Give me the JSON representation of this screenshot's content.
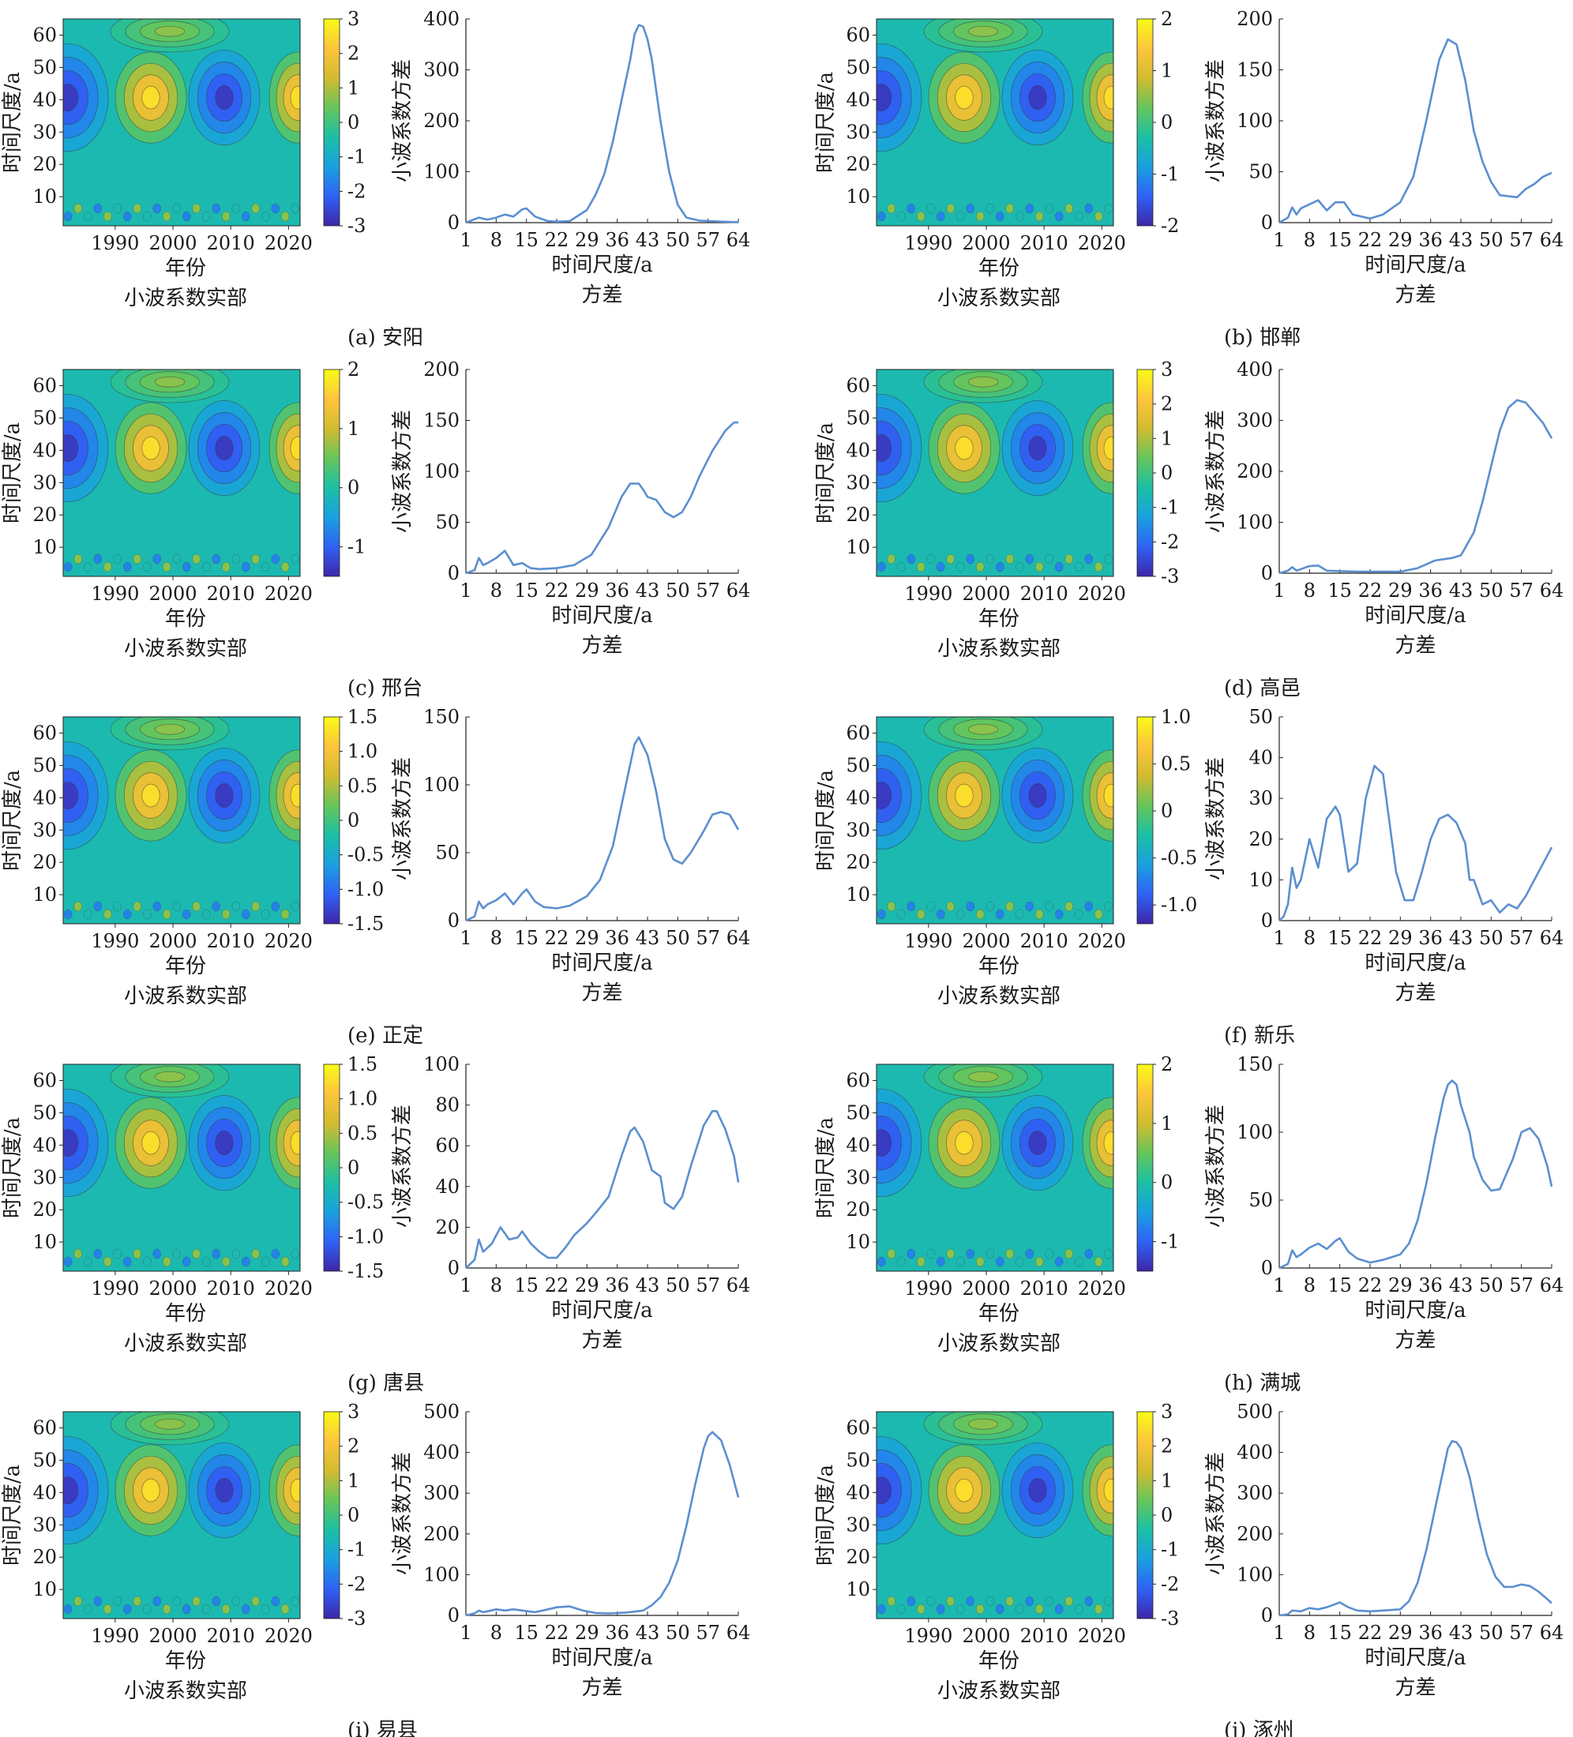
{
  "common": {
    "heat_ylabel": "时间尺度/a",
    "heat_xlabel": "年份",
    "heat_caption": "小波系数实部",
    "var_ylabel": "小波系数方差",
    "var_xlabel": "时间尺度/a",
    "var_caption": "方差",
    "heat_xticks": [
      "1990",
      "2000",
      "2010",
      "2020"
    ],
    "heat_yticks": [
      "10",
      "20",
      "30",
      "40",
      "50",
      "60"
    ],
    "var_xticks": [
      "1",
      "8",
      "15",
      "22",
      "29",
      "36",
      "43",
      "50",
      "57",
      "64"
    ],
    "colormap": [
      "#3e26a8",
      "#2f62f4",
      "#1aa0e0",
      "#1cbfa4",
      "#66c55b",
      "#d2bb30",
      "#fdc53c",
      "#f9fb15"
    ],
    "line_color": "#5b8fd0"
  },
  "chart_data": [
    {
      "id": "a",
      "label": "(a) 安阳",
      "type": "heatmap+line",
      "colorbar_ticks": [
        "3",
        "2",
        "1",
        "0",
        "-1",
        "-2",
        "-3"
      ],
      "cmin": -3,
      "cmax": 3,
      "var_yticks": [
        "0",
        "100",
        "200",
        "300",
        "400"
      ],
      "ylim": [
        0,
        400
      ],
      "x": [
        1,
        4,
        6,
        8,
        10,
        12,
        14,
        15,
        17,
        20,
        22,
        25,
        29,
        31,
        33,
        35,
        37,
        39,
        40,
        41,
        42,
        43,
        44,
        46,
        48,
        50,
        52,
        55,
        60,
        64
      ],
      "values": [
        0,
        10,
        6,
        10,
        16,
        12,
        26,
        28,
        12,
        3,
        2,
        3,
        25,
        55,
        95,
        160,
        240,
        320,
        370,
        388,
        385,
        360,
        320,
        200,
        100,
        35,
        10,
        4,
        2,
        1
      ]
    },
    {
      "id": "b",
      "label": "(b) 邯郸",
      "type": "heatmap+line",
      "colorbar_ticks": [
        "2",
        "1",
        "0",
        "-1",
        "-2"
      ],
      "cmin": -2,
      "cmax": 2,
      "var_yticks": [
        "0",
        "50",
        "100",
        "150",
        "200"
      ],
      "ylim": [
        0,
        200
      ],
      "x": [
        1,
        3,
        4,
        5,
        6,
        8,
        10,
        12,
        14,
        16,
        18,
        22,
        25,
        29,
        32,
        35,
        38,
        40,
        42,
        44,
        46,
        48,
        50,
        52,
        54,
        56,
        58,
        60,
        62,
        64
      ],
      "values": [
        0,
        5,
        15,
        8,
        14,
        18,
        22,
        12,
        20,
        20,
        8,
        4,
        8,
        20,
        45,
        100,
        160,
        180,
        175,
        140,
        90,
        60,
        40,
        27,
        26,
        25,
        33,
        38,
        45,
        49
      ]
    },
    {
      "id": "c",
      "label": "(c) 邢台",
      "type": "heatmap+line",
      "colorbar_ticks": [
        "2",
        "1",
        "0",
        "-1"
      ],
      "cmin": -1.5,
      "cmax": 2,
      "var_yticks": [
        "0",
        "50",
        "100",
        "150",
        "200"
      ],
      "ylim": [
        0,
        200
      ],
      "x": [
        1,
        3,
        4,
        5,
        6,
        8,
        10,
        12,
        14,
        16,
        18,
        22,
        26,
        30,
        34,
        37,
        39,
        41,
        42,
        43,
        45,
        47,
        49,
        51,
        53,
        55,
        58,
        61,
        63,
        64
      ],
      "values": [
        0,
        3,
        15,
        8,
        10,
        15,
        22,
        8,
        10,
        5,
        4,
        5,
        8,
        18,
        45,
        75,
        88,
        88,
        82,
        75,
        72,
        60,
        55,
        60,
        75,
        95,
        120,
        140,
        148,
        148
      ]
    },
    {
      "id": "d",
      "label": "(d)  高邑",
      "type": "heatmap+line",
      "colorbar_ticks": [
        "3",
        "2",
        "1",
        "0",
        "-1",
        "-2",
        "-3"
      ],
      "cmin": -3,
      "cmax": 3,
      "var_yticks": [
        "0",
        "100",
        "200",
        "300",
        "400"
      ],
      "ylim": [
        0,
        400
      ],
      "x": [
        1,
        3,
        4,
        5,
        6,
        8,
        10,
        12,
        15,
        20,
        25,
        29,
        33,
        37,
        41,
        43,
        44,
        46,
        48,
        50,
        52,
        54,
        56,
        58,
        60,
        62,
        64
      ],
      "values": [
        0,
        5,
        12,
        5,
        8,
        14,
        15,
        5,
        4,
        3,
        3,
        3,
        10,
        25,
        30,
        35,
        50,
        80,
        140,
        210,
        280,
        325,
        340,
        335,
        315,
        295,
        265
      ]
    },
    {
      "id": "e",
      "label": "(e) 正定",
      "type": "heatmap+line",
      "colorbar_ticks": [
        "1.5",
        "1.0",
        "0.5",
        "0",
        "-0.5",
        "-1.0",
        "-1.5"
      ],
      "cmin": -1.5,
      "cmax": 1.5,
      "var_yticks": [
        "0",
        "50",
        "100",
        "150"
      ],
      "ylim": [
        0,
        150
      ],
      "x": [
        1,
        3,
        4,
        5,
        6,
        8,
        10,
        12,
        14,
        15,
        17,
        19,
        22,
        25,
        29,
        32,
        35,
        37,
        39,
        40,
        41,
        43,
        45,
        47,
        49,
        51,
        53,
        56,
        58,
        60,
        62,
        64
      ],
      "values": [
        0,
        3,
        14,
        9,
        12,
        15,
        20,
        12,
        20,
        23,
        14,
        10,
        9,
        11,
        18,
        30,
        55,
        85,
        115,
        130,
        135,
        122,
        95,
        60,
        45,
        42,
        50,
        66,
        78,
        80,
        78,
        67
      ]
    },
    {
      "id": "f",
      "label": "(f)  新乐",
      "type": "heatmap+line",
      "colorbar_ticks": [
        "1.0",
        "0.5",
        "0",
        "-0.5",
        "-1.0"
      ],
      "cmin": -1.2,
      "cmax": 1.0,
      "var_yticks": [
        "0",
        "10",
        "20",
        "30",
        "40",
        "50"
      ],
      "ylim": [
        0,
        50
      ],
      "x": [
        1,
        2,
        3,
        4,
        5,
        6,
        8,
        10,
        12,
        14,
        15,
        17,
        19,
        21,
        23,
        25,
        26,
        28,
        30,
        32,
        34,
        36,
        38,
        40,
        42,
        44,
        45,
        46,
        48,
        50,
        52,
        54,
        56,
        58,
        60,
        62,
        64
      ],
      "values": [
        0,
        1,
        4,
        13,
        8,
        10,
        20,
        13,
        25,
        28,
        26,
        12,
        14,
        30,
        38,
        36,
        28,
        12,
        5,
        5,
        12,
        20,
        25,
        26,
        24,
        19,
        10,
        10,
        4,
        5,
        2,
        4,
        3,
        6,
        10,
        14,
        18
      ]
    },
    {
      "id": "g",
      "label": "(g)  唐县",
      "type": "heatmap+line",
      "colorbar_ticks": [
        "1.5",
        "1.0",
        "0.5",
        "0",
        "-0.5",
        "-1.0",
        "-1.5"
      ],
      "cmin": -1.5,
      "cmax": 1.5,
      "var_yticks": [
        "0",
        "20",
        "40",
        "60",
        "80",
        "100"
      ],
      "ylim": [
        0,
        100
      ],
      "x": [
        1,
        3,
        4,
        5,
        7,
        9,
        11,
        13,
        14,
        16,
        18,
        20,
        22,
        24,
        26,
        29,
        31,
        34,
        37,
        39,
        40,
        42,
        44,
        46,
        47,
        49,
        51,
        53,
        56,
        58,
        59,
        61,
        63,
        64
      ],
      "values": [
        0,
        4,
        14,
        8,
        12,
        20,
        14,
        15,
        18,
        12,
        8,
        5,
        5,
        10,
        16,
        22,
        27,
        35,
        55,
        67,
        69,
        62,
        48,
        45,
        32,
        29,
        35,
        50,
        70,
        77,
        77,
        68,
        55,
        42
      ]
    },
    {
      "id": "h",
      "label": "(h)  满城",
      "type": "heatmap+line",
      "colorbar_ticks": [
        "2",
        "1",
        "0",
        "-1"
      ],
      "cmin": -1.5,
      "cmax": 2,
      "var_yticks": [
        "0",
        "50",
        "100",
        "150"
      ],
      "ylim": [
        0,
        150
      ],
      "x": [
        1,
        3,
        4,
        5,
        6,
        8,
        10,
        12,
        14,
        15,
        17,
        19,
        22,
        25,
        29,
        31,
        33,
        35,
        37,
        39,
        40,
        41,
        42,
        43,
        45,
        46,
        48,
        50,
        52,
        55,
        57,
        59,
        61,
        63,
        64
      ],
      "values": [
        0,
        3,
        13,
        8,
        10,
        15,
        18,
        14,
        20,
        22,
        12,
        7,
        4,
        6,
        10,
        18,
        35,
        62,
        95,
        125,
        135,
        138,
        135,
        120,
        100,
        82,
        65,
        57,
        58,
        80,
        100,
        103,
        95,
        75,
        60
      ]
    },
    {
      "id": "i",
      "label": "(i)  易县",
      "type": "heatmap+line",
      "colorbar_ticks": [
        "3",
        "2",
        "1",
        "0",
        "-1",
        "-2",
        "-3"
      ],
      "cmin": -3,
      "cmax": 3,
      "var_yticks": [
        "0",
        "100",
        "200",
        "300",
        "400",
        "500"
      ],
      "ylim": [
        0,
        500
      ],
      "x": [
        1,
        3,
        4,
        5,
        6,
        8,
        10,
        12,
        14,
        17,
        20,
        22,
        25,
        28,
        31,
        34,
        38,
        42,
        44,
        46,
        48,
        50,
        52,
        54,
        56,
        57,
        58,
        60,
        62,
        64
      ],
      "values": [
        0,
        5,
        12,
        8,
        10,
        15,
        12,
        15,
        12,
        8,
        15,
        20,
        22,
        12,
        6,
        5,
        7,
        12,
        25,
        45,
        80,
        135,
        220,
        320,
        410,
        440,
        450,
        430,
        370,
        290
      ]
    },
    {
      "id": "j",
      "label": "(j)  涿州",
      "type": "heatmap+line",
      "colorbar_ticks": [
        "3",
        "2",
        "1",
        "0",
        "-1",
        "-2",
        "-3"
      ],
      "cmin": -3,
      "cmax": 3,
      "var_yticks": [
        "0",
        "100",
        "200",
        "300",
        "400",
        "500"
      ],
      "ylim": [
        0,
        500
      ],
      "x": [
        1,
        3,
        4,
        6,
        8,
        10,
        12,
        14,
        15,
        17,
        19,
        22,
        25,
        29,
        31,
        33,
        35,
        37,
        39,
        40,
        41,
        42,
        43,
        45,
        47,
        49,
        51,
        53,
        55,
        57,
        59,
        61,
        63,
        64
      ],
      "values": [
        0,
        3,
        12,
        10,
        18,
        15,
        20,
        28,
        32,
        20,
        12,
        10,
        12,
        15,
        35,
        80,
        160,
        260,
        360,
        410,
        428,
        425,
        410,
        340,
        240,
        150,
        95,
        70,
        70,
        76,
        72,
        58,
        40,
        30
      ]
    }
  ]
}
